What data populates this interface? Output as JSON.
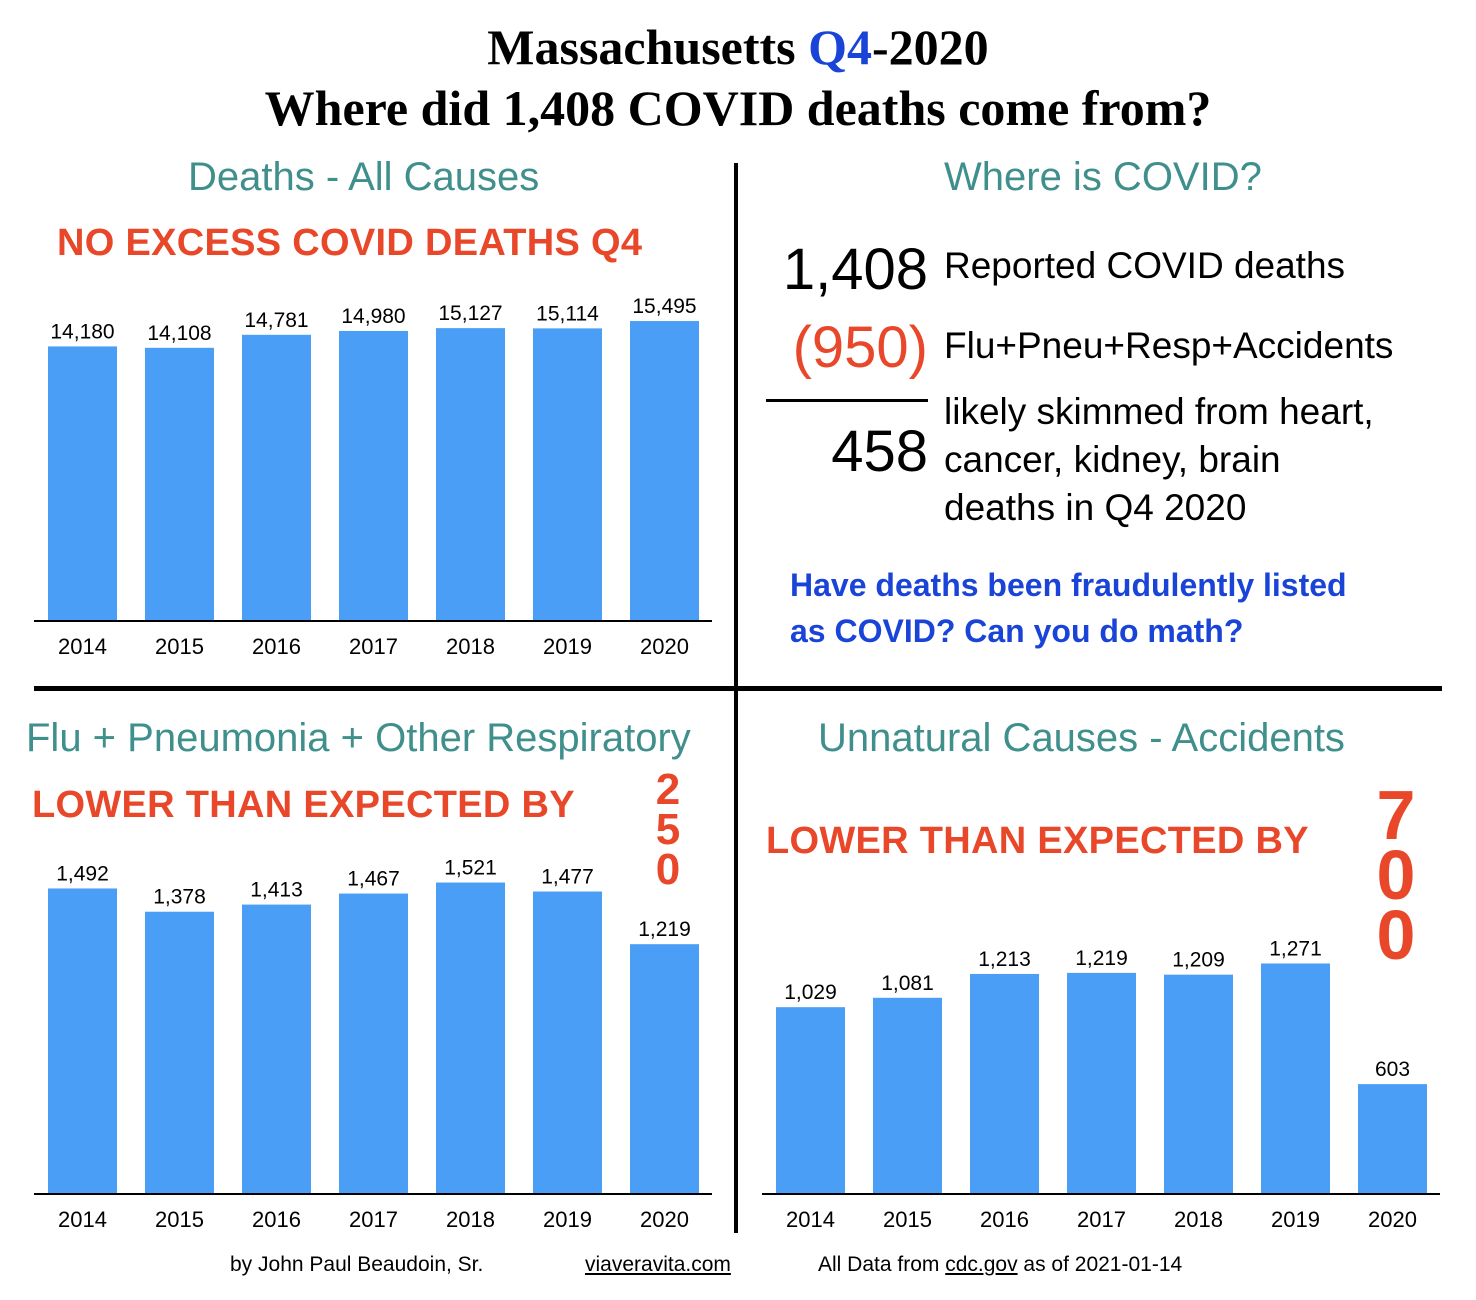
{
  "header": {
    "title_line1_pre": "Massachusetts ",
    "title_line1_highlight": "Q4",
    "title_line1_post": "-2020",
    "title_line2": "Where did 1,408 COVID deaths come from?"
  },
  "colors": {
    "bar": "#4b9ef5",
    "teal_titles": "#3f8f8c",
    "callout_red": "#e8472a",
    "highlight_blue": "#1a44d8"
  },
  "panels": {
    "all_causes": {
      "title": "Deaths - All Causes",
      "callout": "NO EXCESS COVID DEATHS Q4"
    },
    "covid": {
      "title": "Where is COVID?",
      "reported_value": "1,408",
      "reported_label": "Reported COVID deaths",
      "subtract_value": "(950)",
      "subtract_label": "Flu+Pneu+Resp+Accidents",
      "result_value": "458",
      "result_label_1": "likely skimmed from heart,",
      "result_label_2": "cancer, kidney, brain",
      "result_label_3": "deaths in Q4 2020",
      "question_1": "Have deaths been fraudulently listed",
      "question_2": "as COVID?  Can you do math?"
    },
    "flu": {
      "title": "Flu + Pneumonia + Other Respiratory",
      "callout": "LOWER THAN EXPECTED BY",
      "big_digits": [
        "2",
        "5",
        "0"
      ]
    },
    "accidents": {
      "title": "Unnatural Causes - Accidents",
      "callout": "LOWER THAN EXPECTED BY",
      "big_digits": [
        "7",
        "0",
        "0"
      ]
    }
  },
  "footer": {
    "author": "by John Paul Beaudoin, Sr.",
    "site": "viaveravita.com",
    "source_pre": "All Data from ",
    "source_link": "cdc.gov",
    "source_post": " as of 2021-01-14"
  },
  "chart_data": [
    {
      "type": "bar",
      "title": "Deaths - All Causes",
      "categories": [
        "2014",
        "2015",
        "2016",
        "2017",
        "2018",
        "2019",
        "2020"
      ],
      "values": [
        14180,
        14108,
        14781,
        14980,
        15127,
        15114,
        15495
      ],
      "value_labels": [
        "14,180",
        "14,108",
        "14,781",
        "14,980",
        "15,127",
        "15,114",
        "15,495"
      ],
      "ylim": [
        0,
        17000
      ]
    },
    {
      "type": "bar",
      "title": "Flu + Pneumonia + Other Respiratory",
      "categories": [
        "2014",
        "2015",
        "2016",
        "2017",
        "2018",
        "2019",
        "2020"
      ],
      "values": [
        1492,
        1378,
        1413,
        1467,
        1521,
        1477,
        1219
      ],
      "value_labels": [
        "1,492",
        "1,378",
        "1,413",
        "1,467",
        "1,521",
        "1,477",
        "1,219"
      ],
      "ylim": [
        0,
        1700
      ]
    },
    {
      "type": "bar",
      "title": "Unnatural Causes - Accidents",
      "categories": [
        "2014",
        "2015",
        "2016",
        "2017",
        "2018",
        "2019",
        "2020"
      ],
      "values": [
        1029,
        1081,
        1213,
        1219,
        1209,
        1271,
        603
      ],
      "value_labels": [
        "1,029",
        "1,081",
        "1,213",
        "1,219",
        "1,209",
        "1,271",
        "603"
      ],
      "ylim": [
        0,
        1700
      ]
    }
  ]
}
